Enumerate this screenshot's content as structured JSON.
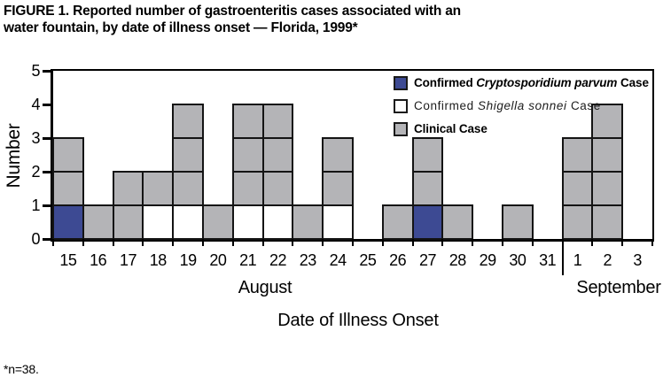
{
  "title": {
    "line1": "FIGURE 1. Reported number of gastroenteritis cases associated with an",
    "line2": "water fountain, by date of illness onset — Florida, 1999*"
  },
  "footnote": "*n=38.",
  "colors": {
    "crypto": "#3d4a93",
    "shigella": "#ffffff",
    "clinical": "#b4b4b7",
    "cell_border": "#141414",
    "axis": "#000000"
  },
  "legend": {
    "items": [
      {
        "pre": "Confirmed ",
        "species": "Cryptosporidium parvum",
        "post": " Case",
        "style": "bold",
        "color_key": "crypto"
      },
      {
        "pre": "Confirmed ",
        "species": "Shigella sonnei",
        "post": " Case",
        "style": "light",
        "color_key": "shigella"
      },
      {
        "pre": "Clinical Case",
        "species": "",
        "post": "",
        "style": "bold",
        "color_key": "clinical"
      }
    ]
  },
  "axes": {
    "y_label": "Number",
    "x_label": "Date of Illness Onset",
    "months": [
      "August",
      "September"
    ]
  },
  "chart_data": {
    "type": "bar",
    "stacked": true,
    "title": "FIGURE 1. Reported number of gastroenteritis cases associated with an water fountain, by date of illness onset — Florida, 1999*",
    "xlabel": "Date of Illness Onset",
    "ylabel": "Number",
    "ylim": [
      0,
      5
    ],
    "y_ticks": [
      0,
      1,
      2,
      3,
      4,
      5
    ],
    "grid": false,
    "legend_position": "upper right",
    "categories": [
      "15",
      "16",
      "17",
      "18",
      "19",
      "20",
      "21",
      "22",
      "23",
      "24",
      "25",
      "26",
      "27",
      "28",
      "29",
      "30",
      "31",
      "1",
      "2",
      "3"
    ],
    "month_groups": [
      {
        "label": "August",
        "from": "15",
        "to": "31"
      },
      {
        "label": "September",
        "from": "1",
        "to": "3"
      }
    ],
    "series": [
      {
        "name": "Confirmed Cryptosporidium parvum Case",
        "color": "#3d4a93",
        "values": [
          1,
          0,
          0,
          0,
          0,
          0,
          0,
          0,
          0,
          0,
          0,
          0,
          1,
          0,
          0,
          0,
          0,
          0,
          0,
          0
        ]
      },
      {
        "name": "Confirmed Shigella sonnei Case",
        "color": "#ffffff",
        "values": [
          0,
          0,
          0,
          1,
          1,
          0,
          1,
          1,
          0,
          1,
          0,
          0,
          0,
          0,
          0,
          0,
          0,
          0,
          0,
          0
        ]
      },
      {
        "name": "Clinical Case",
        "color": "#b4b4b7",
        "values": [
          2,
          1,
          2,
          1,
          3,
          1,
          3,
          3,
          1,
          2,
          0,
          1,
          2,
          1,
          0,
          1,
          0,
          3,
          4,
          0
        ]
      }
    ],
    "totals_per_date": [
      3,
      1,
      2,
      2,
      4,
      1,
      4,
      4,
      1,
      3,
      0,
      1,
      3,
      1,
      0,
      1,
      0,
      3,
      4,
      0
    ],
    "stacks_bottom_to_top": [
      [
        "crypto",
        "clinical",
        "clinical"
      ],
      [
        "clinical"
      ],
      [
        "clinical",
        "clinical"
      ],
      [
        "shigella",
        "clinical"
      ],
      [
        "shigella",
        "clinical",
        "clinical",
        "clinical"
      ],
      [
        "clinical"
      ],
      [
        "shigella",
        "clinical",
        "clinical",
        "clinical"
      ],
      [
        "shigella",
        "clinical",
        "clinical",
        "clinical"
      ],
      [
        "clinical"
      ],
      [
        "shigella",
        "clinical",
        "clinical"
      ],
      [],
      [
        "clinical"
      ],
      [
        "crypto",
        "clinical",
        "clinical"
      ],
      [
        "clinical"
      ],
      [],
      [
        "clinical"
      ],
      [],
      [
        "clinical",
        "clinical",
        "clinical"
      ],
      [
        "clinical",
        "clinical",
        "clinical",
        "clinical"
      ],
      []
    ]
  }
}
